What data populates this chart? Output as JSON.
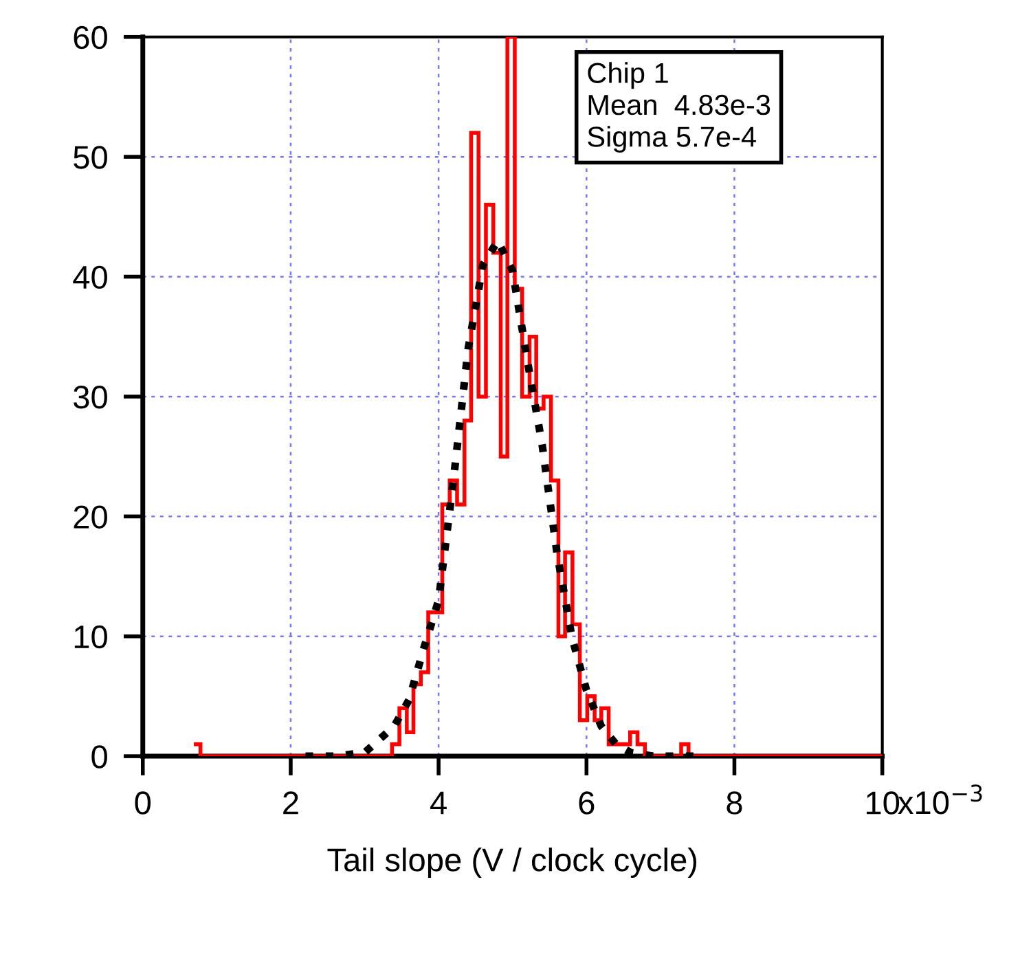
{
  "chart_data": {
    "type": "histogram",
    "xlabel": "Tail slope (V / clock cycle)",
    "bins": [
      0.69,
      0.78,
      3.37,
      3.47,
      3.57,
      3.66,
      3.76,
      3.86,
      3.96,
      4.05,
      4.15,
      4.25,
      4.35,
      4.44,
      4.54,
      4.64,
      4.74,
      4.84,
      4.93,
      5.03,
      5.13,
      5.23,
      5.32,
      5.42,
      5.52,
      5.62,
      5.71,
      5.81,
      5.91,
      6.01,
      6.11,
      6.2,
      6.3,
      6.4,
      6.49,
      6.59,
      6.69,
      6.79,
      6.89,
      6.98,
      7.08,
      7.18,
      7.28,
      7.38,
      10
    ],
    "series": [
      {
        "color": "#ff0000",
        "values": [
          1,
          0,
          1,
          4,
          2,
          6,
          7,
          12,
          12,
          21,
          23,
          21,
          28,
          52,
          30,
          46,
          42,
          25,
          60,
          39,
          30,
          35,
          29,
          30,
          23,
          10,
          17,
          11,
          3,
          5,
          3,
          4,
          1,
          1,
          1,
          2,
          1,
          0,
          0,
          0,
          0,
          0,
          1,
          0
        ]
      },
      {
        "type": "line",
        "color": "#000000",
        "line_style": "dotted",
        "x": [
          2.2,
          2.6,
          3.0,
          3.4,
          3.6,
          3.8,
          4.0,
          4.2,
          4.4,
          4.6,
          4.8,
          5.0,
          5.2,
          5.4,
          5.6,
          5.8,
          6.0,
          6.2,
          6.4,
          6.6,
          6.9,
          7.3,
          7.6
        ],
        "values": [
          0,
          0,
          0.3,
          2.5,
          4.7,
          9,
          13,
          23,
          34,
          41,
          43,
          40.5,
          33,
          26,
          17,
          10,
          5.5,
          2.5,
          1,
          0.3,
          0,
          0,
          0
        ]
      }
    ],
    "annotations": [
      "Chip 1",
      "Mean  4.83e-3",
      "Sigma 5.7e-4",
      "x10$^{−3}$"
    ],
    "xlim": [
      0,
      10
    ],
    "ylim": [
      0,
      60
    ],
    "xticks": [
      0,
      2,
      4,
      6,
      8,
      10
    ],
    "yticks": [
      0,
      10,
      20,
      30,
      40,
      50,
      60
    ],
    "grid": true,
    "legend": false
  }
}
